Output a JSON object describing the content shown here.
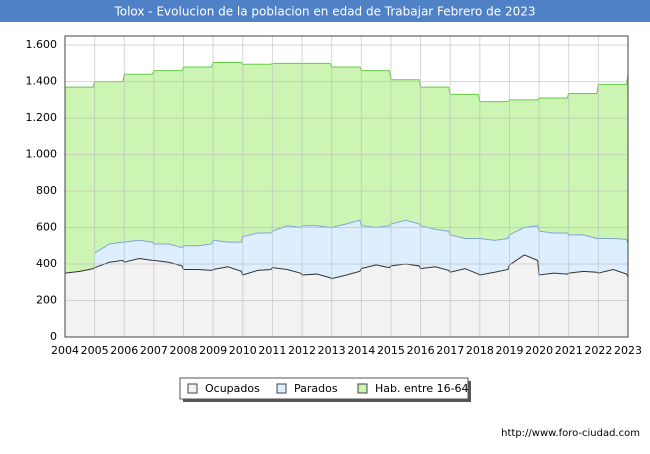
{
  "chart_data": {
    "type": "area",
    "title": "Tolox - Evolucion de la poblacion en edad de Trabajar Febrero de 2023",
    "footer": "http://www.foro-ciudad.com",
    "x": [
      2004,
      2004.5,
      2004.95,
      2005,
      2005.5,
      2005.95,
      2006,
      2006.5,
      2006.95,
      2007,
      2007.5,
      2007.95,
      2008,
      2008.5,
      2008.95,
      2009,
      2009.5,
      2009.95,
      2010,
      2010.5,
      2010.95,
      2011,
      2011.5,
      2011.95,
      2012,
      2012.5,
      2012.95,
      2013,
      2013.5,
      2013.95,
      2014,
      2014.5,
      2014.95,
      2015,
      2015.5,
      2015.95,
      2016,
      2016.5,
      2016.95,
      2017,
      2017.5,
      2017.95,
      2018,
      2018.5,
      2018.95,
      2019,
      2019.5,
      2019.95,
      2020,
      2020.5,
      2020.95,
      2021,
      2021.5,
      2021.95,
      2022,
      2022.5,
      2022.95,
      2023
    ],
    "series": [
      {
        "name": "Ocupados",
        "color": "#333333",
        "fill": "#f2f2f2",
        "values": [
          350,
          360,
          375,
          380,
          410,
          420,
          410,
          430,
          420,
          420,
          410,
          390,
          370,
          370,
          365,
          370,
          385,
          360,
          340,
          365,
          370,
          380,
          370,
          350,
          340,
          345,
          325,
          320,
          340,
          360,
          375,
          395,
          380,
          390,
          400,
          390,
          375,
          385,
          365,
          355,
          375,
          345,
          340,
          355,
          370,
          395,
          450,
          420,
          340,
          350,
          345,
          350,
          360,
          355,
          350,
          370,
          345,
          330
        ]
      },
      {
        "name": "Parados",
        "color": "#7fa6d9",
        "fill": "#ddeeff",
        "stacked": true,
        "values": [
          null,
          null,
          null,
          80,
          100,
          100,
          110,
          100,
          100,
          90,
          100,
          100,
          130,
          130,
          145,
          160,
          135,
          160,
          210,
          205,
          200,
          200,
          240,
          250,
          270,
          265,
          275,
          280,
          280,
          280,
          235,
          205,
          230,
          230,
          240,
          230,
          235,
          205,
          215,
          205,
          165,
          195,
          200,
          175,
          170,
          165,
          150,
          190,
          240,
          220,
          225,
          210,
          200,
          185,
          190,
          170,
          190,
          180
        ]
      },
      {
        "name": "Hab. entre 16-64",
        "color": "#66cc44",
        "fill": "#ccf5b4",
        "values": [
          1370,
          1370,
          1370,
          1400,
          1400,
          1400,
          1440,
          1440,
          1440,
          1460,
          1460,
          1460,
          1480,
          1480,
          1480,
          1505,
          1505,
          1505,
          1495,
          1495,
          1495,
          1500,
          1500,
          1500,
          1500,
          1500,
          1500,
          1480,
          1480,
          1480,
          1460,
          1460,
          1460,
          1410,
          1410,
          1410,
          1370,
          1370,
          1370,
          1330,
          1330,
          1330,
          1290,
          1290,
          1290,
          1300,
          1300,
          1300,
          1310,
          1310,
          1310,
          1335,
          1335,
          1335,
          1385,
          1385,
          1385,
          1440
        ]
      }
    ],
    "xlim": [
      2004,
      2023
    ],
    "xticks": [
      2004,
      2005,
      2006,
      2007,
      2008,
      2009,
      2010,
      2011,
      2012,
      2013,
      2014,
      2015,
      2016,
      2017,
      2018,
      2019,
      2020,
      2021,
      2022,
      2023
    ],
    "ylim": [
      0,
      1650
    ],
    "yticks": [
      0,
      200,
      400,
      600,
      800,
      {
        "value": 1000,
        "label": "1.000"
      },
      {
        "value": 1200,
        "label": "1.200"
      },
      {
        "value": 1400,
        "label": "1.400"
      },
      {
        "value": 1600,
        "label": "1.600"
      }
    ],
    "grid": true
  }
}
